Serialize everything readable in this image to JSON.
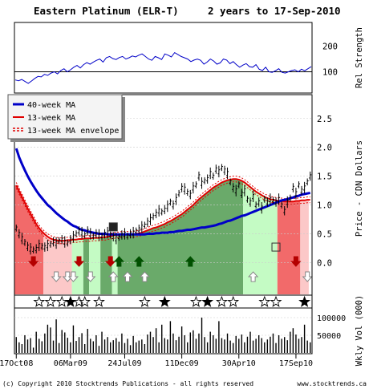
{
  "header": {
    "title": "Eastern Platinum (ELR-T)",
    "period": "2 years to 17-Sep-2010"
  },
  "footer": {
    "copyright": "(c) Copyright 2010 Stocktrends Publications - all rights reserved",
    "site": "www.stocktrends.ca"
  },
  "legend": {
    "items": [
      {
        "label": "40-week MA",
        "color": "#0000c8",
        "style": "solid"
      },
      {
        "label": "13-week MA",
        "color": "#e00000",
        "style": "solid"
      },
      {
        "label": "13-week MA envelope",
        "color": "#e00000",
        "style": "dashed"
      }
    ]
  },
  "colors": {
    "bullish": "#6aaa6a",
    "weak_bullish": "#c4fbc4",
    "bearish": "#f26a6a",
    "weak_bearish": "#fcc8c8",
    "ma40": "#0000c8",
    "ma13": "#e00000",
    "arrow_up": "#005000",
    "arrow_down": "#b40000"
  },
  "chart_data": [
    {
      "type": "line",
      "panel": "relative-strength",
      "ylabel": "Rel Strength",
      "yticks": [
        100,
        200
      ],
      "reference_line": 100,
      "ylim": [
        20,
        290
      ],
      "values": [
        68,
        65,
        70,
        62,
        55,
        64,
        74,
        82,
        80,
        90,
        86,
        95,
        100,
        92,
        105,
        112,
        100,
        108,
        118,
        125,
        115,
        128,
        136,
        130,
        138,
        145,
        150,
        138,
        155,
        160,
        152,
        148,
        156,
        160,
        150,
        155,
        162,
        158,
        165,
        170,
        160,
        150,
        145,
        160,
        155,
        148,
        170,
        165,
        158,
        175,
        168,
        160,
        155,
        150,
        140,
        146,
        150,
        145,
        130,
        138,
        150,
        142,
        130,
        135,
        150,
        146,
        132,
        140,
        128,
        118,
        126,
        132,
        120,
        118,
        128,
        110,
        105,
        118,
        100,
        98,
        104,
        112,
        98,
        95,
        100,
        105,
        108,
        100,
        110,
        104,
        112,
        120
      ]
    },
    {
      "type": "line",
      "panel": "price",
      "ylabel": "Price - CDN Dollars",
      "yticks": [
        0.0,
        0.5,
        1.0,
        1.5,
        2.0,
        2.5
      ],
      "ylim": [
        -0.55,
        2.9
      ],
      "x_count": 104,
      "series": [
        {
          "name": "40-week MA",
          "values": [
            1.98,
            1.83,
            1.71,
            1.6,
            1.5,
            1.41,
            1.33,
            1.25,
            1.18,
            1.12,
            1.06,
            1.0,
            0.96,
            0.91,
            0.86,
            0.82,
            0.78,
            0.74,
            0.71,
            0.67,
            0.64,
            0.62,
            0.59,
            0.57,
            0.56,
            0.54,
            0.53,
            0.52,
            0.51,
            0.5,
            0.5,
            0.5,
            0.49,
            0.49,
            0.49,
            0.49,
            0.49,
            0.49,
            0.49,
            0.49,
            0.49,
            0.49,
            0.49,
            0.49,
            0.49,
            0.49,
            0.5,
            0.5,
            0.5,
            0.51,
            0.51,
            0.52,
            0.52,
            0.52,
            0.53,
            0.53,
            0.54,
            0.55,
            0.55,
            0.56,
            0.57,
            0.57,
            0.58,
            0.59,
            0.6,
            0.61,
            0.61,
            0.62,
            0.63,
            0.64,
            0.65,
            0.67,
            0.68,
            0.7,
            0.72,
            0.73,
            0.75,
            0.77,
            0.79,
            0.81,
            0.82,
            0.84,
            0.86,
            0.88,
            0.9,
            0.92,
            0.94,
            0.96,
            0.98,
            1.0,
            1.02,
            1.04,
            1.06,
            1.08,
            1.09,
            1.1,
            1.12,
            1.13,
            1.15,
            1.16,
            1.18,
            1.19,
            1.2,
            1.21
          ]
        },
        {
          "name": "13-week MA",
          "values": [
            1.34,
            1.24,
            1.14,
            1.04,
            0.94,
            0.85,
            0.76,
            0.67,
            0.6,
            0.54,
            0.49,
            0.45,
            0.42,
            0.4,
            0.39,
            0.38,
            0.38,
            0.38,
            0.39,
            0.39,
            0.4,
            0.4,
            0.41,
            0.41,
            0.42,
            0.42,
            0.42,
            0.43,
            0.43,
            0.43,
            0.44,
            0.44,
            0.45,
            0.46,
            0.47,
            0.48,
            0.48,
            0.49,
            0.49,
            0.49,
            0.49,
            0.49,
            0.5,
            0.51,
            0.52,
            0.54,
            0.56,
            0.58,
            0.6,
            0.61,
            0.63,
            0.65,
            0.67,
            0.7,
            0.72,
            0.75,
            0.78,
            0.81,
            0.84,
            0.88,
            0.92,
            0.96,
            1.0,
            1.05,
            1.1,
            1.14,
            1.18,
            1.22,
            1.26,
            1.3,
            1.33,
            1.36,
            1.39,
            1.41,
            1.43,
            1.44,
            1.45,
            1.45,
            1.44,
            1.42,
            1.39,
            1.35,
            1.31,
            1.27,
            1.23,
            1.2,
            1.17,
            1.14,
            1.12,
            1.1,
            1.09,
            1.08,
            1.07,
            1.07,
            1.06,
            1.06,
            1.06,
            1.06,
            1.07,
            1.07,
            1.08,
            1.08,
            1.09,
            1.09
          ]
        },
        {
          "name": "price",
          "values": [
            0.6,
            0.5,
            0.42,
            0.35,
            0.28,
            0.24,
            0.22,
            0.24,
            0.3,
            0.28,
            0.27,
            0.3,
            0.32,
            0.36,
            0.34,
            0.38,
            0.4,
            0.36,
            0.34,
            0.4,
            0.45,
            0.5,
            0.55,
            0.52,
            0.48,
            0.55,
            0.5,
            0.46,
            0.5,
            0.48,
            0.46,
            0.5,
            0.52,
            0.48,
            0.45,
            0.42,
            0.44,
            0.48,
            0.5,
            0.46,
            0.5,
            0.52,
            0.55,
            0.58,
            0.62,
            0.65,
            0.7,
            0.75,
            0.8,
            0.85,
            0.9,
            0.88,
            0.92,
            0.98,
            1.05,
            1.0,
            1.1,
            1.2,
            1.3,
            1.28,
            1.22,
            1.18,
            1.3,
            1.35,
            1.5,
            1.38,
            1.42,
            1.45,
            1.55,
            1.5,
            1.62,
            1.58,
            1.65,
            1.6,
            1.55,
            1.4,
            1.3,
            1.25,
            1.35,
            1.2,
            1.25,
            1.1,
            1.05,
            1.15,
            1.0,
            1.05,
            0.95,
            1.1,
            1.05,
            1.1,
            1.08,
            1.05,
            1.1,
            1.0,
            0.9,
            1.05,
            1.12,
            1.3,
            1.2,
            1.35,
            1.25,
            1.3,
            1.4,
            1.5
          ]
        }
      ],
      "trend_zones": [
        {
          "from": 0,
          "to": 10,
          "trend": "bearish"
        },
        {
          "from": 10,
          "to": 20,
          "trend": "weak_bearish"
        },
        {
          "from": 20,
          "to": 24,
          "trend": "weak_bullish"
        },
        {
          "from": 24,
          "to": 26,
          "trend": "bullish"
        },
        {
          "from": 26,
          "to": 30,
          "trend": "weak_bullish"
        },
        {
          "from": 30,
          "to": 34,
          "trend": "bullish"
        },
        {
          "from": 34,
          "to": 36,
          "trend": "weak_bullish"
        },
        {
          "from": 36,
          "to": 80,
          "trend": "bullish"
        },
        {
          "from": 80,
          "to": 92,
          "trend": "weak_bullish"
        },
        {
          "from": 92,
          "to": 100,
          "trend": "bearish"
        },
        {
          "from": 100,
          "to": 103,
          "trend": "weak_bearish"
        }
      ],
      "signals": [
        {
          "x": 6,
          "kind": "solid-down"
        },
        {
          "x": 14,
          "kind": "open-down"
        },
        {
          "x": 18,
          "kind": "open-down"
        },
        {
          "x": 20,
          "kind": "open-down"
        },
        {
          "x": 22,
          "kind": "solid-down"
        },
        {
          "x": 26,
          "kind": "open-down"
        },
        {
          "x": 33,
          "kind": "solid-down"
        },
        {
          "x": 34,
          "kind": "open-up"
        },
        {
          "x": 36,
          "kind": "solid-up"
        },
        {
          "x": 39,
          "kind": "open-up"
        },
        {
          "x": 43,
          "kind": "solid-up"
        },
        {
          "x": 45,
          "kind": "open-up"
        },
        {
          "x": 61,
          "kind": "solid-up"
        },
        {
          "x": 83,
          "kind": "open-up"
        },
        {
          "x": 98,
          "kind": "solid-down"
        },
        {
          "x": 102,
          "kind": "open-down"
        }
      ],
      "boxes": [
        {
          "x": 34,
          "kind": "solid",
          "y": 0.62
        },
        {
          "x": 91,
          "kind": "open",
          "y": 0.27
        }
      ]
    },
    {
      "type": "scatter",
      "panel": "stars",
      "stars": [
        {
          "x": 8,
          "kind": "open"
        },
        {
          "x": 12,
          "kind": "open"
        },
        {
          "x": 16,
          "kind": "open"
        },
        {
          "x": 19,
          "kind": "solid"
        },
        {
          "x": 22,
          "kind": "open"
        },
        {
          "x": 24,
          "kind": "open"
        },
        {
          "x": 29,
          "kind": "open"
        },
        {
          "x": 45,
          "kind": "open"
        },
        {
          "x": 52,
          "kind": "solid"
        },
        {
          "x": 63,
          "kind": "open"
        },
        {
          "x": 67,
          "kind": "solid"
        },
        {
          "x": 72,
          "kind": "open"
        },
        {
          "x": 76,
          "kind": "open"
        },
        {
          "x": 87,
          "kind": "open"
        },
        {
          "x": 91,
          "kind": "open"
        },
        {
          "x": 101,
          "kind": "solid"
        }
      ]
    },
    {
      "type": "bar",
      "panel": "volume",
      "ylabel": "Wkly Vol (000)",
      "yticks": [
        50000,
        100000
      ],
      "ylim": [
        0,
        125000
      ],
      "values": [
        45000,
        30000,
        25000,
        50000,
        38000,
        42000,
        15000,
        60000,
        40000,
        33000,
        55000,
        80000,
        72000,
        35000,
        95000,
        28000,
        65000,
        58000,
        43000,
        30000,
        78000,
        34000,
        45000,
        56000,
        25000,
        68000,
        40000,
        33000,
        50000,
        20000,
        60000,
        38000,
        45000,
        30000,
        36000,
        42000,
        32000,
        55000,
        28000,
        40000,
        22000,
        48000,
        30000,
        35000,
        38000,
        25000,
        52000,
        60000,
        45000,
        70000,
        30000,
        80000,
        42000,
        38000,
        90000,
        55000,
        36000,
        46000,
        75000,
        50000,
        30000,
        58000,
        64000,
        40000,
        55000,
        100000,
        45000,
        30000,
        60000,
        50000,
        40000,
        90000,
        42000,
        38000,
        55000,
        35000,
        28000,
        48000,
        40000,
        52000,
        30000,
        46000,
        60000,
        35000,
        40000,
        50000,
        42000,
        30000,
        38000,
        46000,
        55000,
        28000,
        50000,
        40000,
        45000,
        36000,
        60000,
        70000,
        52000,
        40000,
        45000,
        80000,
        35000,
        30000
      ]
    },
    {
      "type": "table",
      "panel": "x-axis",
      "tick_labels": [
        {
          "x": 0,
          "label": "17Oct08"
        },
        {
          "x": 19,
          "label": "06Mar09"
        },
        {
          "x": 38,
          "label": "24Jul09"
        },
        {
          "x": 58,
          "label": "11Dec09"
        },
        {
          "x": 78,
          "label": "30Apr10"
        },
        {
          "x": 98,
          "label": "17Sep10"
        }
      ]
    }
  ]
}
